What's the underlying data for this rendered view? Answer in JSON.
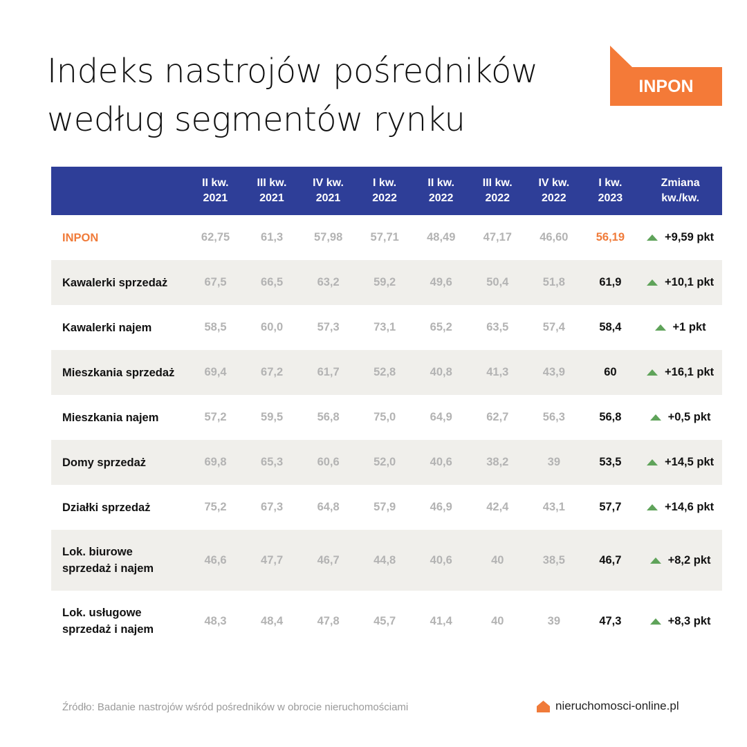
{
  "title": {
    "line1": "Indeks nastrojów pośredników",
    "line2": "według segmentów rynku"
  },
  "badge": {
    "label": "INPON",
    "color": "#f47a38"
  },
  "table": {
    "header_color": "#2e3e98",
    "columns": [
      {
        "line1": "II kw.",
        "line2": "2021"
      },
      {
        "line1": "III kw.",
        "line2": "2021"
      },
      {
        "line1": "IV kw.",
        "line2": "2021"
      },
      {
        "line1": "I kw.",
        "line2": "2022"
      },
      {
        "line1": "II kw.",
        "line2": "2022"
      },
      {
        "line1": "III kw.",
        "line2": "2022"
      },
      {
        "line1": "IV kw.",
        "line2": "2022"
      },
      {
        "line1": "I kw.",
        "line2": "2023"
      },
      {
        "line1": "Zmiana",
        "line2": "kw./kw."
      }
    ],
    "rows": [
      {
        "label1": "INPON",
        "label2": "",
        "values": [
          "62,75",
          "61,3",
          "57,98",
          "57,71",
          "48,49",
          "47,17",
          "46,60",
          "56,19"
        ],
        "change": "+9,59 pkt"
      },
      {
        "label1": "Kawalerki sprzedaż",
        "label2": "",
        "values": [
          "67,5",
          "66,5",
          "63,2",
          "59,2",
          "49,6",
          "50,4",
          "51,8",
          "61,9"
        ],
        "change": "+10,1 pkt"
      },
      {
        "label1": "Kawalerki najem",
        "label2": "",
        "values": [
          "58,5",
          "60,0",
          "57,3",
          "73,1",
          "65,2",
          "63,5",
          "57,4",
          "58,4"
        ],
        "change": "+1 pkt"
      },
      {
        "label1": "Mieszkania sprzedaż",
        "label2": "",
        "values": [
          "69,4",
          "67,2",
          "61,7",
          "52,8",
          "40,8",
          "41,3",
          "43,9",
          "60"
        ],
        "change": "+16,1 pkt"
      },
      {
        "label1": "Mieszkania najem",
        "label2": "",
        "values": [
          "57,2",
          "59,5",
          "56,8",
          "75,0",
          "64,9",
          "62,7",
          "56,3",
          "56,8"
        ],
        "change": "+0,5 pkt"
      },
      {
        "label1": "Domy sprzedaż",
        "label2": "",
        "values": [
          "69,8",
          "65,3",
          "60,6",
          "52,0",
          "40,6",
          "38,2",
          "39",
          "53,5"
        ],
        "change": "+14,5 pkt"
      },
      {
        "label1": "Działki sprzedaż",
        "label2": "",
        "values": [
          "75,2",
          "67,3",
          "64,8",
          "57,9",
          "46,9",
          "42,4",
          "43,1",
          "57,7"
        ],
        "change": "+14,6 pkt"
      },
      {
        "label1": "Lok. biurowe",
        "label2": "sprzedaż i najem",
        "values": [
          "46,6",
          "47,7",
          "46,7",
          "44,8",
          "40,6",
          "40",
          "38,5",
          "46,7"
        ],
        "change": "+8,2 pkt"
      },
      {
        "label1": "Lok. usługowe",
        "label2": "sprzedaż i najem",
        "values": [
          "48,3",
          "48,4",
          "47,8",
          "45,7",
          "41,4",
          "40",
          "39",
          "47,3"
        ],
        "change": "+8,3 pkt"
      }
    ]
  },
  "footer": {
    "source": "Źródło: Badanie nastrojów wśród pośredników w obrocie nieruchomościami",
    "logo_text": "nieruchomosci-online.pl",
    "logo_icon": "house-icon"
  },
  "chart_data": {
    "type": "table",
    "title": "Indeks nastrojów pośredników według segmentów rynku",
    "categories": [
      "II kw. 2021",
      "III kw. 2021",
      "IV kw. 2021",
      "I kw. 2022",
      "II kw. 2022",
      "III kw. 2022",
      "IV kw. 2022",
      "I kw. 2023"
    ],
    "series": [
      {
        "name": "INPON",
        "values": [
          62.75,
          61.3,
          57.98,
          57.71,
          48.49,
          47.17,
          46.6,
          56.19
        ],
        "change": "+9,59 pkt"
      },
      {
        "name": "Kawalerki sprzedaż",
        "values": [
          67.5,
          66.5,
          63.2,
          59.2,
          49.6,
          50.4,
          51.8,
          61.9
        ],
        "change": "+10,1 pkt"
      },
      {
        "name": "Kawalerki najem",
        "values": [
          58.5,
          60.0,
          57.3,
          73.1,
          65.2,
          63.5,
          57.4,
          58.4
        ],
        "change": "+1 pkt"
      },
      {
        "name": "Mieszkania sprzedaż",
        "values": [
          69.4,
          67.2,
          61.7,
          52.8,
          40.8,
          41.3,
          43.9,
          60
        ],
        "change": "+16,1 pkt"
      },
      {
        "name": "Mieszkania najem",
        "values": [
          57.2,
          59.5,
          56.8,
          75.0,
          64.9,
          62.7,
          56.3,
          56.8
        ],
        "change": "+0,5 pkt"
      },
      {
        "name": "Domy sprzedaż",
        "values": [
          69.8,
          65.3,
          60.6,
          52.0,
          40.6,
          38.2,
          39,
          53.5
        ],
        "change": "+14,5 pkt"
      },
      {
        "name": "Działki sprzedaż",
        "values": [
          75.2,
          67.3,
          64.8,
          57.9,
          46.9,
          42.4,
          43.1,
          57.7
        ],
        "change": "+14,6 pkt"
      },
      {
        "name": "Lok. biurowe sprzedaż i najem",
        "values": [
          46.6,
          47.7,
          46.7,
          44.8,
          40.6,
          40,
          38.5,
          46.7
        ],
        "change": "+8,2 pkt"
      },
      {
        "name": "Lok. usługowe sprzedaż i najem",
        "values": [
          48.3,
          48.4,
          47.8,
          45.7,
          41.4,
          40,
          39,
          47.3
        ],
        "change": "+8,3 pkt"
      }
    ],
    "extra_column": "Zmiana kw./kw."
  }
}
